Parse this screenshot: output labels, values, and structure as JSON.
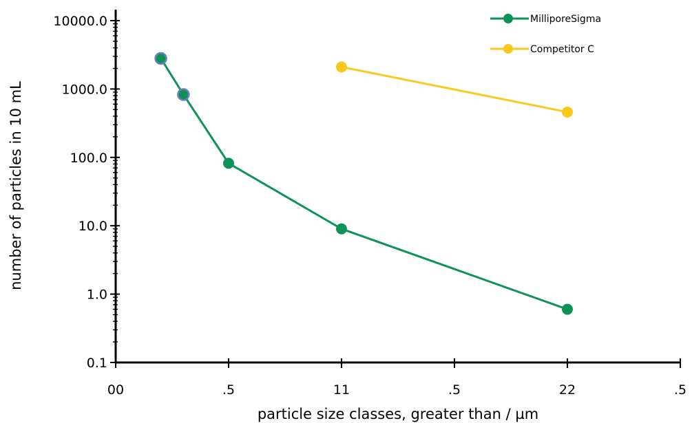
{
  "chart_data": {
    "type": "line",
    "title": "",
    "xlabel": "particle size classes, greater than / µm",
    "ylabel": "number of particles  in 10 mL",
    "y_scale": "log",
    "ylim": [
      0.1,
      10000
    ],
    "y_ticks": [
      0.1,
      1,
      10,
      100,
      1000,
      10000
    ],
    "y_tick_labels": [
      "0.1",
      "1.0",
      "10.0",
      "100.0",
      "1000.0",
      "10000.0"
    ],
    "x_tick_labels": [
      "00",
      ".5",
      "11",
      ".5",
      "22",
      ".5"
    ],
    "grid": false,
    "legend_position": "top-right",
    "series": [
      {
        "name": "MilliporeSigma",
        "color": "#0e9258",
        "points": [
          {
            "x_class": 0.2,
            "y": 2800
          },
          {
            "x_class": 0.3,
            "y": 830
          },
          {
            "x_class": 0.5,
            "y": 82
          },
          {
            "x_class": 1.0,
            "y": 9.0
          },
          {
            "x_class": 2.0,
            "y": 0.6
          }
        ]
      },
      {
        "name": "Competitor C",
        "color": "#f8c81c",
        "points": [
          {
            "x_class": 1.0,
            "y": 2100
          },
          {
            "x_class": 2.0,
            "y": 460
          }
        ]
      }
    ]
  }
}
